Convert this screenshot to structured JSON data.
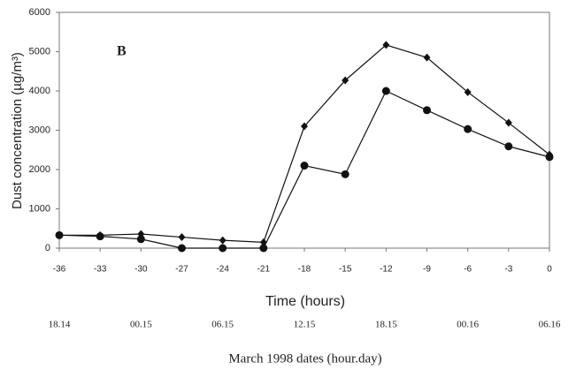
{
  "chart_data": {
    "type": "line",
    "annotation": "B",
    "xlabel": "Time (hours)",
    "ylabel": "Dust concentration (µg/m³)",
    "x": [
      -36,
      -33,
      -30,
      -27,
      -24,
      -21,
      -18,
      -15,
      -12,
      -9,
      -6,
      -3,
      0
    ],
    "series": [
      {
        "color": "#111111",
        "marker": "diamond",
        "values": [
          330,
          330,
          360,
          280,
          200,
          150,
          3100,
          4270,
          5170,
          4850,
          3970,
          3190,
          2380
        ]
      },
      {
        "color": "#111111",
        "marker": "circle",
        "values": [
          330,
          300,
          230,
          0,
          0,
          0,
          2100,
          1880,
          4000,
          3510,
          3030,
          2590,
          2320
        ]
      }
    ],
    "xlim": [
      -36,
      0
    ],
    "xticks": [
      -36,
      -33,
      -30,
      -27,
      -24,
      -21,
      -18,
      -15,
      -12,
      -9,
      -6,
      -3,
      0
    ],
    "ylim": [
      0,
      6000
    ],
    "yticks": [
      0,
      1000,
      2000,
      3000,
      4000,
      5000,
      6000
    ],
    "grid": false,
    "secondary_xaxis": {
      "label": "March 1998 dates (hour.day)",
      "ticks": [
        {
          "value": -36,
          "label": "18.14"
        },
        {
          "value": -30,
          "label": "00.15"
        },
        {
          "value": -24,
          "label": "06.15"
        },
        {
          "value": -18,
          "label": "12.15"
        },
        {
          "value": -12,
          "label": "18.15"
        },
        {
          "value": -6,
          "label": "00.16"
        },
        {
          "value": 0,
          "label": "06.16"
        }
      ]
    }
  }
}
